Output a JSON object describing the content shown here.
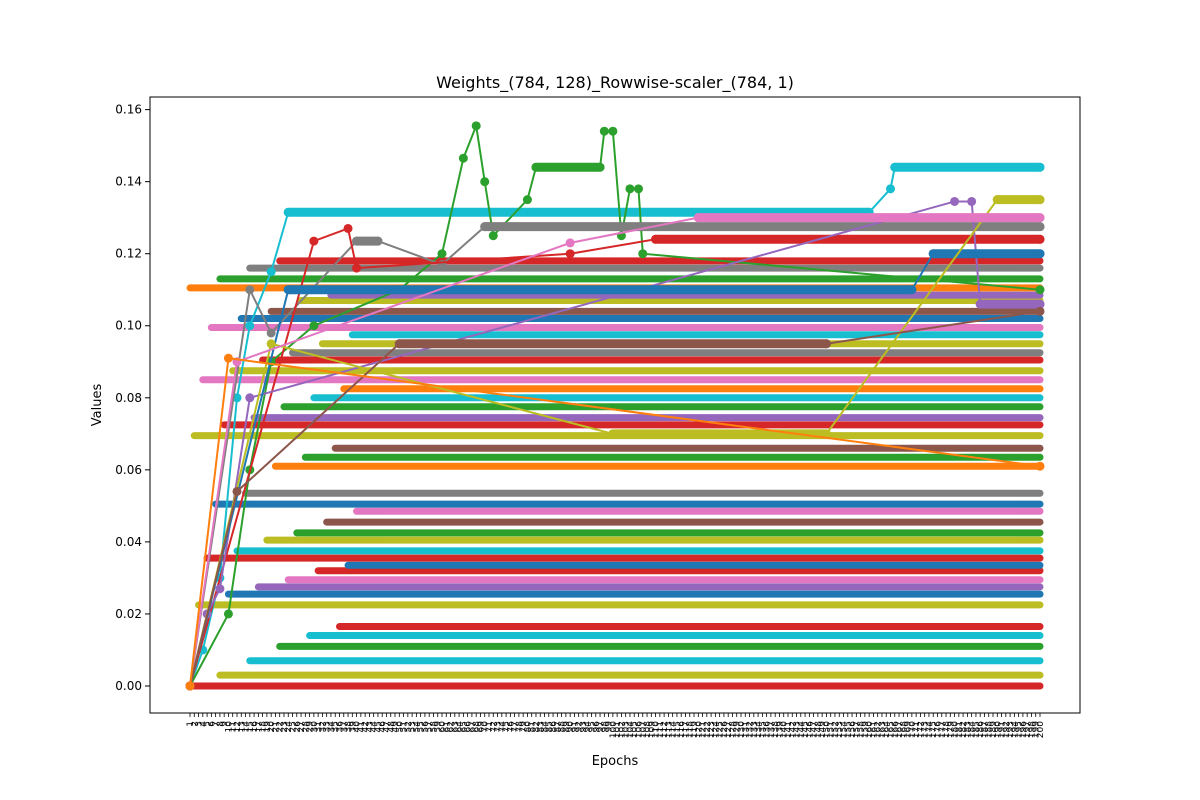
{
  "chart_data": {
    "type": "line",
    "title": "Weights_(784, 128)_Rowwise-scaler_(784, 1)",
    "xlabel": "Epochs",
    "ylabel": "Values",
    "ylim": [
      -0.0075,
      0.1635
    ],
    "yticks": [
      0.0,
      0.02,
      0.04,
      0.06,
      0.08,
      0.1,
      0.12,
      0.14,
      0.16
    ],
    "ytick_labels": [
      "0.00",
      "0.02",
      "0.04",
      "0.06",
      "0.08",
      "0.10",
      "0.12",
      "0.14",
      "0.16"
    ],
    "x_categories_start": 1,
    "x_categories_end": 200,
    "grid": false,
    "legend": "none",
    "marker": "circle",
    "colors": [
      "#1f77b4",
      "#ff7f0e",
      "#2ca02c",
      "#d62728",
      "#9467bd",
      "#8c564b",
      "#e377c2",
      "#7f7f7f",
      "#bcbd22",
      "#17becf"
    ],
    "series": [
      {
        "color": "#17becf",
        "points": [
          [
            1,
            0.0
          ],
          [
            4,
            0.01
          ],
          [
            8,
            0.03
          ],
          [
            12,
            0.08
          ],
          [
            15,
            0.1
          ],
          [
            20,
            0.115
          ],
          [
            24,
            0.1315
          ],
          [
            160,
            0.1315
          ],
          [
            165,
            0.138
          ],
          [
            166,
            0.144
          ],
          [
            200,
            0.144
          ]
        ]
      },
      {
        "color": "#2ca02c",
        "points": [
          [
            1,
            0.0
          ],
          [
            10,
            0.02
          ],
          [
            15,
            0.06
          ],
          [
            20,
            0.09
          ],
          [
            30,
            0.1
          ],
          [
            50,
            0.11
          ],
          [
            60,
            0.12
          ],
          [
            65,
            0.1465
          ],
          [
            68,
            0.1555
          ],
          [
            70,
            0.14
          ],
          [
            72,
            0.125
          ],
          [
            80,
            0.135
          ],
          [
            82,
            0.144
          ],
          [
            97,
            0.144
          ],
          [
            98,
            0.154
          ],
          [
            100,
            0.154
          ],
          [
            102,
            0.125
          ],
          [
            104,
            0.138
          ],
          [
            106,
            0.138
          ],
          [
            107,
            0.12
          ],
          [
            200,
            0.11
          ]
        ]
      },
      {
        "color": "#7f7f7f",
        "points": [
          [
            1,
            0.0
          ],
          [
            15,
            0.11
          ],
          [
            20,
            0.098
          ],
          [
            40,
            0.1235
          ],
          [
            45,
            0.1235
          ],
          [
            60,
            0.117
          ],
          [
            70,
            0.1275
          ],
          [
            200,
            0.1275
          ]
        ]
      },
      {
        "color": "#d62728",
        "points": [
          [
            1,
            0.0
          ],
          [
            30,
            0.1235
          ],
          [
            38,
            0.127
          ],
          [
            40,
            0.116
          ],
          [
            90,
            0.12
          ],
          [
            110,
            0.124
          ],
          [
            200,
            0.124
          ]
        ]
      },
      {
        "color": "#9467bd",
        "points": [
          [
            1,
            0.0
          ],
          [
            5,
            0.02
          ],
          [
            8,
            0.027
          ],
          [
            15,
            0.08
          ],
          [
            180,
            0.1345
          ],
          [
            184,
            0.1345
          ],
          [
            186,
            0.106
          ],
          [
            200,
            0.106
          ]
        ]
      },
      {
        "color": "#1f77b4",
        "points": [
          [
            1,
            0.0
          ],
          [
            24,
            0.11
          ],
          [
            170,
            0.11
          ],
          [
            175,
            0.12
          ],
          [
            200,
            0.12
          ]
        ]
      },
      {
        "color": "#bcbd22",
        "points": [
          [
            1,
            0.0
          ],
          [
            20,
            0.095
          ],
          [
            100,
            0.07
          ],
          [
            150,
            0.07
          ],
          [
            190,
            0.135
          ],
          [
            200,
            0.135
          ]
        ]
      },
      {
        "color": "#e377c2",
        "points": [
          [
            1,
            0.0
          ],
          [
            12,
            0.09
          ],
          [
            90,
            0.123
          ],
          [
            120,
            0.13
          ],
          [
            200,
            0.13
          ]
        ]
      },
      {
        "color": "#8c564b",
        "points": [
          [
            1,
            0.0
          ],
          [
            12,
            0.054
          ],
          [
            50,
            0.095
          ],
          [
            150,
            0.095
          ],
          [
            200,
            0.104
          ]
        ]
      },
      {
        "color": "#ff7f0e",
        "points": [
          [
            1,
            0.0
          ],
          [
            10,
            0.091
          ],
          [
            200,
            0.061
          ]
        ]
      }
    ],
    "bands": [
      {
        "color": "#d62728",
        "value": 0.0
      },
      {
        "color": "#bcbd22",
        "value": 0.003
      },
      {
        "color": "#17becf",
        "value": 0.007
      },
      {
        "color": "#2ca02c",
        "value": 0.011
      },
      {
        "color": "#17becf",
        "value": 0.014
      },
      {
        "color": "#d62728",
        "value": 0.0165
      },
      {
        "color": "#bcbd22",
        "value": 0.0225
      },
      {
        "color": "#1f77b4",
        "value": 0.0255
      },
      {
        "color": "#9467bd",
        "value": 0.0275
      },
      {
        "color": "#e377c2",
        "value": 0.0295
      },
      {
        "color": "#d62728",
        "value": 0.032
      },
      {
        "color": "#1f77b4",
        "value": 0.0335
      },
      {
        "color": "#d62728",
        "value": 0.0355
      },
      {
        "color": "#17becf",
        "value": 0.0375
      },
      {
        "color": "#bcbd22",
        "value": 0.0405
      },
      {
        "color": "#2ca02c",
        "value": 0.0425
      },
      {
        "color": "#8c564b",
        "value": 0.0455
      },
      {
        "color": "#e377c2",
        "value": 0.0485
      },
      {
        "color": "#1f77b4",
        "value": 0.0505
      },
      {
        "color": "#7f7f7f",
        "value": 0.0535
      },
      {
        "color": "#ff7f0e",
        "value": 0.061
      },
      {
        "color": "#2ca02c",
        "value": 0.0635
      },
      {
        "color": "#8c564b",
        "value": 0.066
      },
      {
        "color": "#bcbd22",
        "value": 0.0695
      },
      {
        "color": "#d62728",
        "value": 0.0725
      },
      {
        "color": "#9467bd",
        "value": 0.0745
      },
      {
        "color": "#2ca02c",
        "value": 0.0775
      },
      {
        "color": "#17becf",
        "value": 0.08
      },
      {
        "color": "#ff7f0e",
        "value": 0.0825
      },
      {
        "color": "#e377c2",
        "value": 0.085
      },
      {
        "color": "#bcbd22",
        "value": 0.0875
      },
      {
        "color": "#d62728",
        "value": 0.0905
      },
      {
        "color": "#7f7f7f",
        "value": 0.0925
      },
      {
        "color": "#bcbd22",
        "value": 0.095
      },
      {
        "color": "#17becf",
        "value": 0.0975
      },
      {
        "color": "#e377c2",
        "value": 0.0995
      },
      {
        "color": "#1f77b4",
        "value": 0.102
      },
      {
        "color": "#8c564b",
        "value": 0.104
      },
      {
        "color": "#bcbd22",
        "value": 0.107
      },
      {
        "color": "#9467bd",
        "value": 0.1085
      },
      {
        "color": "#ff7f0e",
        "value": 0.1105
      },
      {
        "color": "#2ca02c",
        "value": 0.113
      },
      {
        "color": "#7f7f7f",
        "value": 0.116
      },
      {
        "color": "#d62728",
        "value": 0.118
      }
    ]
  }
}
